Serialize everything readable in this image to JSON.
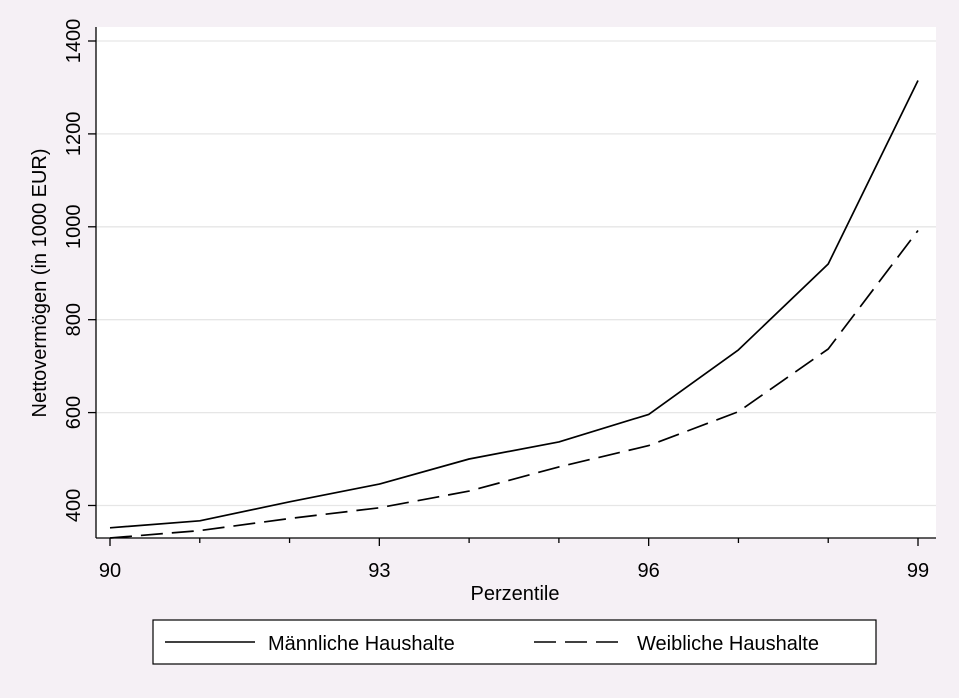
{
  "chart_data": {
    "type": "line",
    "title": "",
    "xlabel": "Perzentile",
    "ylabel": "Nettovermögen (in 1000 EUR)",
    "x": [
      90,
      91,
      92,
      93,
      94,
      95,
      96,
      97,
      98,
      99
    ],
    "xticks": [
      90,
      93,
      96,
      99
    ],
    "xlim": [
      90,
      99
    ],
    "yticks": [
      400,
      600,
      800,
      1000,
      1200,
      1400
    ],
    "ylim": [
      330,
      1400
    ],
    "grid": true,
    "legend_position": "bottom",
    "series": [
      {
        "name": "Männliche Haushalte",
        "style": "solid",
        "values": [
          352,
          367,
          408,
          446,
          500,
          537,
          596,
          735,
          920,
          1315
        ]
      },
      {
        "name": "Weibliche Haushalte",
        "style": "dashed",
        "values": [
          330,
          346,
          372,
          395,
          431,
          483,
          529,
          602,
          737,
          992
        ]
      }
    ],
    "colors": {
      "background": "#f5f0f5",
      "plot_background": "#ffffff",
      "line": "#000000",
      "grid": "#e6e6e6"
    }
  }
}
